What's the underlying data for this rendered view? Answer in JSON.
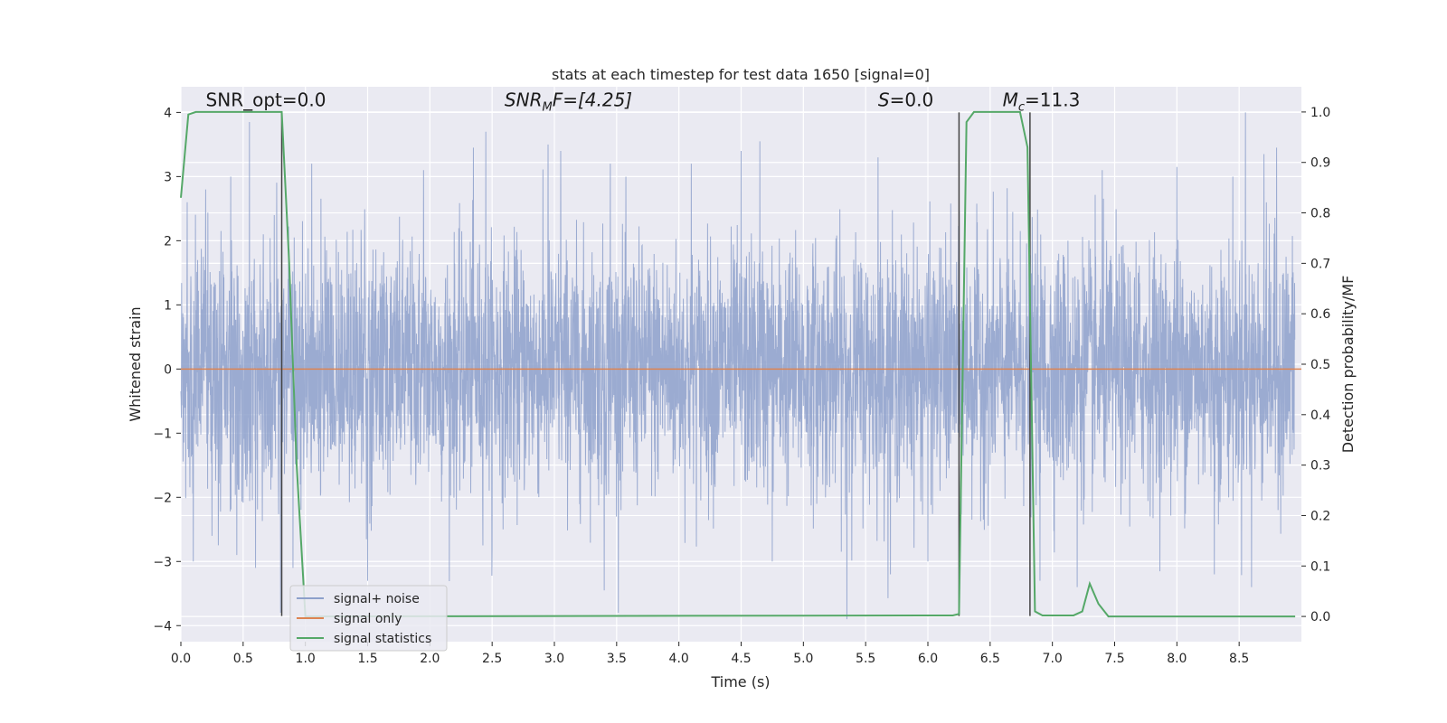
{
  "chart_data": {
    "type": "line",
    "title": "stats at each timestep for test data 1650 [signal=0]",
    "xlabel": "Time (s)",
    "ylabel": "Whitened strain",
    "ylabel_right": "Detection probability/MF",
    "xlim": [
      0.0,
      9.0
    ],
    "ylim": [
      -4.25,
      4.4
    ],
    "ylim_right": [
      -0.05,
      1.05
    ],
    "x_ticks": [
      0.0,
      0.5,
      1.0,
      1.5,
      2.0,
      2.5,
      3.0,
      3.5,
      4.0,
      4.5,
      5.0,
      5.5,
      6.0,
      6.5,
      7.0,
      7.5,
      8.0,
      8.5
    ],
    "x_tick_labels": [
      "0.0",
      "0.5",
      "1.0",
      "1.5",
      "2.0",
      "2.5",
      "3.0",
      "3.5",
      "4.0",
      "4.5",
      "5.0",
      "5.5",
      "6.0",
      "6.5",
      "7.0",
      "7.5",
      "8.0",
      "8.5"
    ],
    "y_ticks": [
      -4,
      -3,
      -2,
      -1,
      0,
      1,
      2,
      3,
      4
    ],
    "y_tick_labels": [
      "−4",
      "−3",
      "−2",
      "−1",
      "0",
      "1",
      "2",
      "3",
      "4"
    ],
    "y_ticks_right": [
      0.0,
      0.1,
      0.2,
      0.3,
      0.4,
      0.5,
      0.6,
      0.7,
      0.8,
      0.9,
      1.0
    ],
    "y_tick_labels_right": [
      "0.0",
      "0.1",
      "0.2",
      "0.3",
      "0.4",
      "0.5",
      "0.6",
      "0.7",
      "0.8",
      "0.9",
      "1.0"
    ],
    "grid": true,
    "legend_position": "lower-left",
    "annotations": [
      {
        "text": "SNR_opt=0.0",
        "x": 0.2,
        "y": 4.1
      },
      {
        "text": "SNR_MF=[4.25]",
        "x": 2.6,
        "y": 4.1,
        "main": "SNR",
        "sub": "M",
        "tail": "F=[4.25]"
      },
      {
        "text": "S=0.0",
        "x": 5.6,
        "y": 4.1,
        "main": "S",
        "tail": "=0.0"
      },
      {
        "text": "M_c=11.3",
        "x": 6.6,
        "y": 4.1,
        "main": "M",
        "sub": "c",
        "tail": "=11.3"
      }
    ],
    "vertical_lines": [
      {
        "x": 0.81,
        "y_top": 4.0,
        "y_bottom": -3.85
      },
      {
        "x": 6.25,
        "y_top": 4.0,
        "y_bottom": -3.85
      },
      {
        "x": 6.82,
        "y_top": 4.0,
        "y_bottom": -3.85
      }
    ],
    "series": [
      {
        "name": "signal+ noise",
        "color": "#8da0cb",
        "kind": "noise",
        "sample_rate": 512,
        "std": 1.0,
        "peaks": [
          [
            0.05,
            2.6
          ],
          [
            0.1,
            -3.0
          ],
          [
            0.2,
            2.8
          ],
          [
            0.25,
            -2.6
          ],
          [
            0.4,
            3.0
          ],
          [
            0.45,
            -2.9
          ],
          [
            0.55,
            3.85
          ],
          [
            0.6,
            -3.1
          ],
          [
            0.75,
            2.4
          ],
          [
            0.8,
            -3.8
          ],
          [
            0.9,
            -3.1
          ],
          [
            1.05,
            3.2
          ],
          [
            1.5,
            -3.3
          ],
          [
            1.95,
            3.1
          ],
          [
            2.35,
            3.45
          ],
          [
            2.45,
            3.7
          ],
          [
            2.5,
            -2.8
          ],
          [
            2.95,
            3.5
          ],
          [
            3.05,
            3.4
          ],
          [
            3.4,
            -3.45
          ],
          [
            3.45,
            3.2
          ],
          [
            4.1,
            3.2
          ],
          [
            4.5,
            3.4
          ],
          [
            4.65,
            3.55
          ],
          [
            4.75,
            -3.0
          ],
          [
            5.35,
            -3.9
          ],
          [
            5.6,
            3.3
          ],
          [
            5.7,
            -3.2
          ],
          [
            6.0,
            -3.0
          ],
          [
            6.9,
            -3.3
          ],
          [
            7.2,
            -3.4
          ],
          [
            7.4,
            3.1
          ],
          [
            8.0,
            3.15
          ],
          [
            8.3,
            -3.2
          ],
          [
            8.45,
            3.0
          ],
          [
            8.55,
            4.0
          ],
          [
            8.6,
            -3.4
          ],
          [
            8.7,
            3.35
          ],
          [
            8.8,
            3.45
          ]
        ]
      },
      {
        "name": "signal only",
        "color": "#dd8452",
        "x": [
          0.0,
          9.0
        ],
        "y": [
          0.0,
          0.0
        ]
      },
      {
        "name": "signal statistics",
        "color": "#55a868",
        "axis": "right",
        "x": [
          0.0,
          0.06,
          0.12,
          0.2,
          0.7,
          0.81,
          0.87,
          0.93,
          1.0,
          6.2,
          6.25,
          6.31,
          6.37,
          6.74,
          6.8,
          6.86,
          6.92,
          7.17,
          7.24,
          7.3,
          7.37,
          7.45,
          8.95
        ],
        "y": [
          0.83,
          0.995,
          1.0,
          1.0,
          1.0,
          1.0,
          0.7,
          0.3,
          0.0,
          0.002,
          0.005,
          0.98,
          1.0,
          1.0,
          0.93,
          0.01,
          0.002,
          0.002,
          0.01,
          0.065,
          0.025,
          0.0,
          0.0
        ]
      }
    ]
  }
}
